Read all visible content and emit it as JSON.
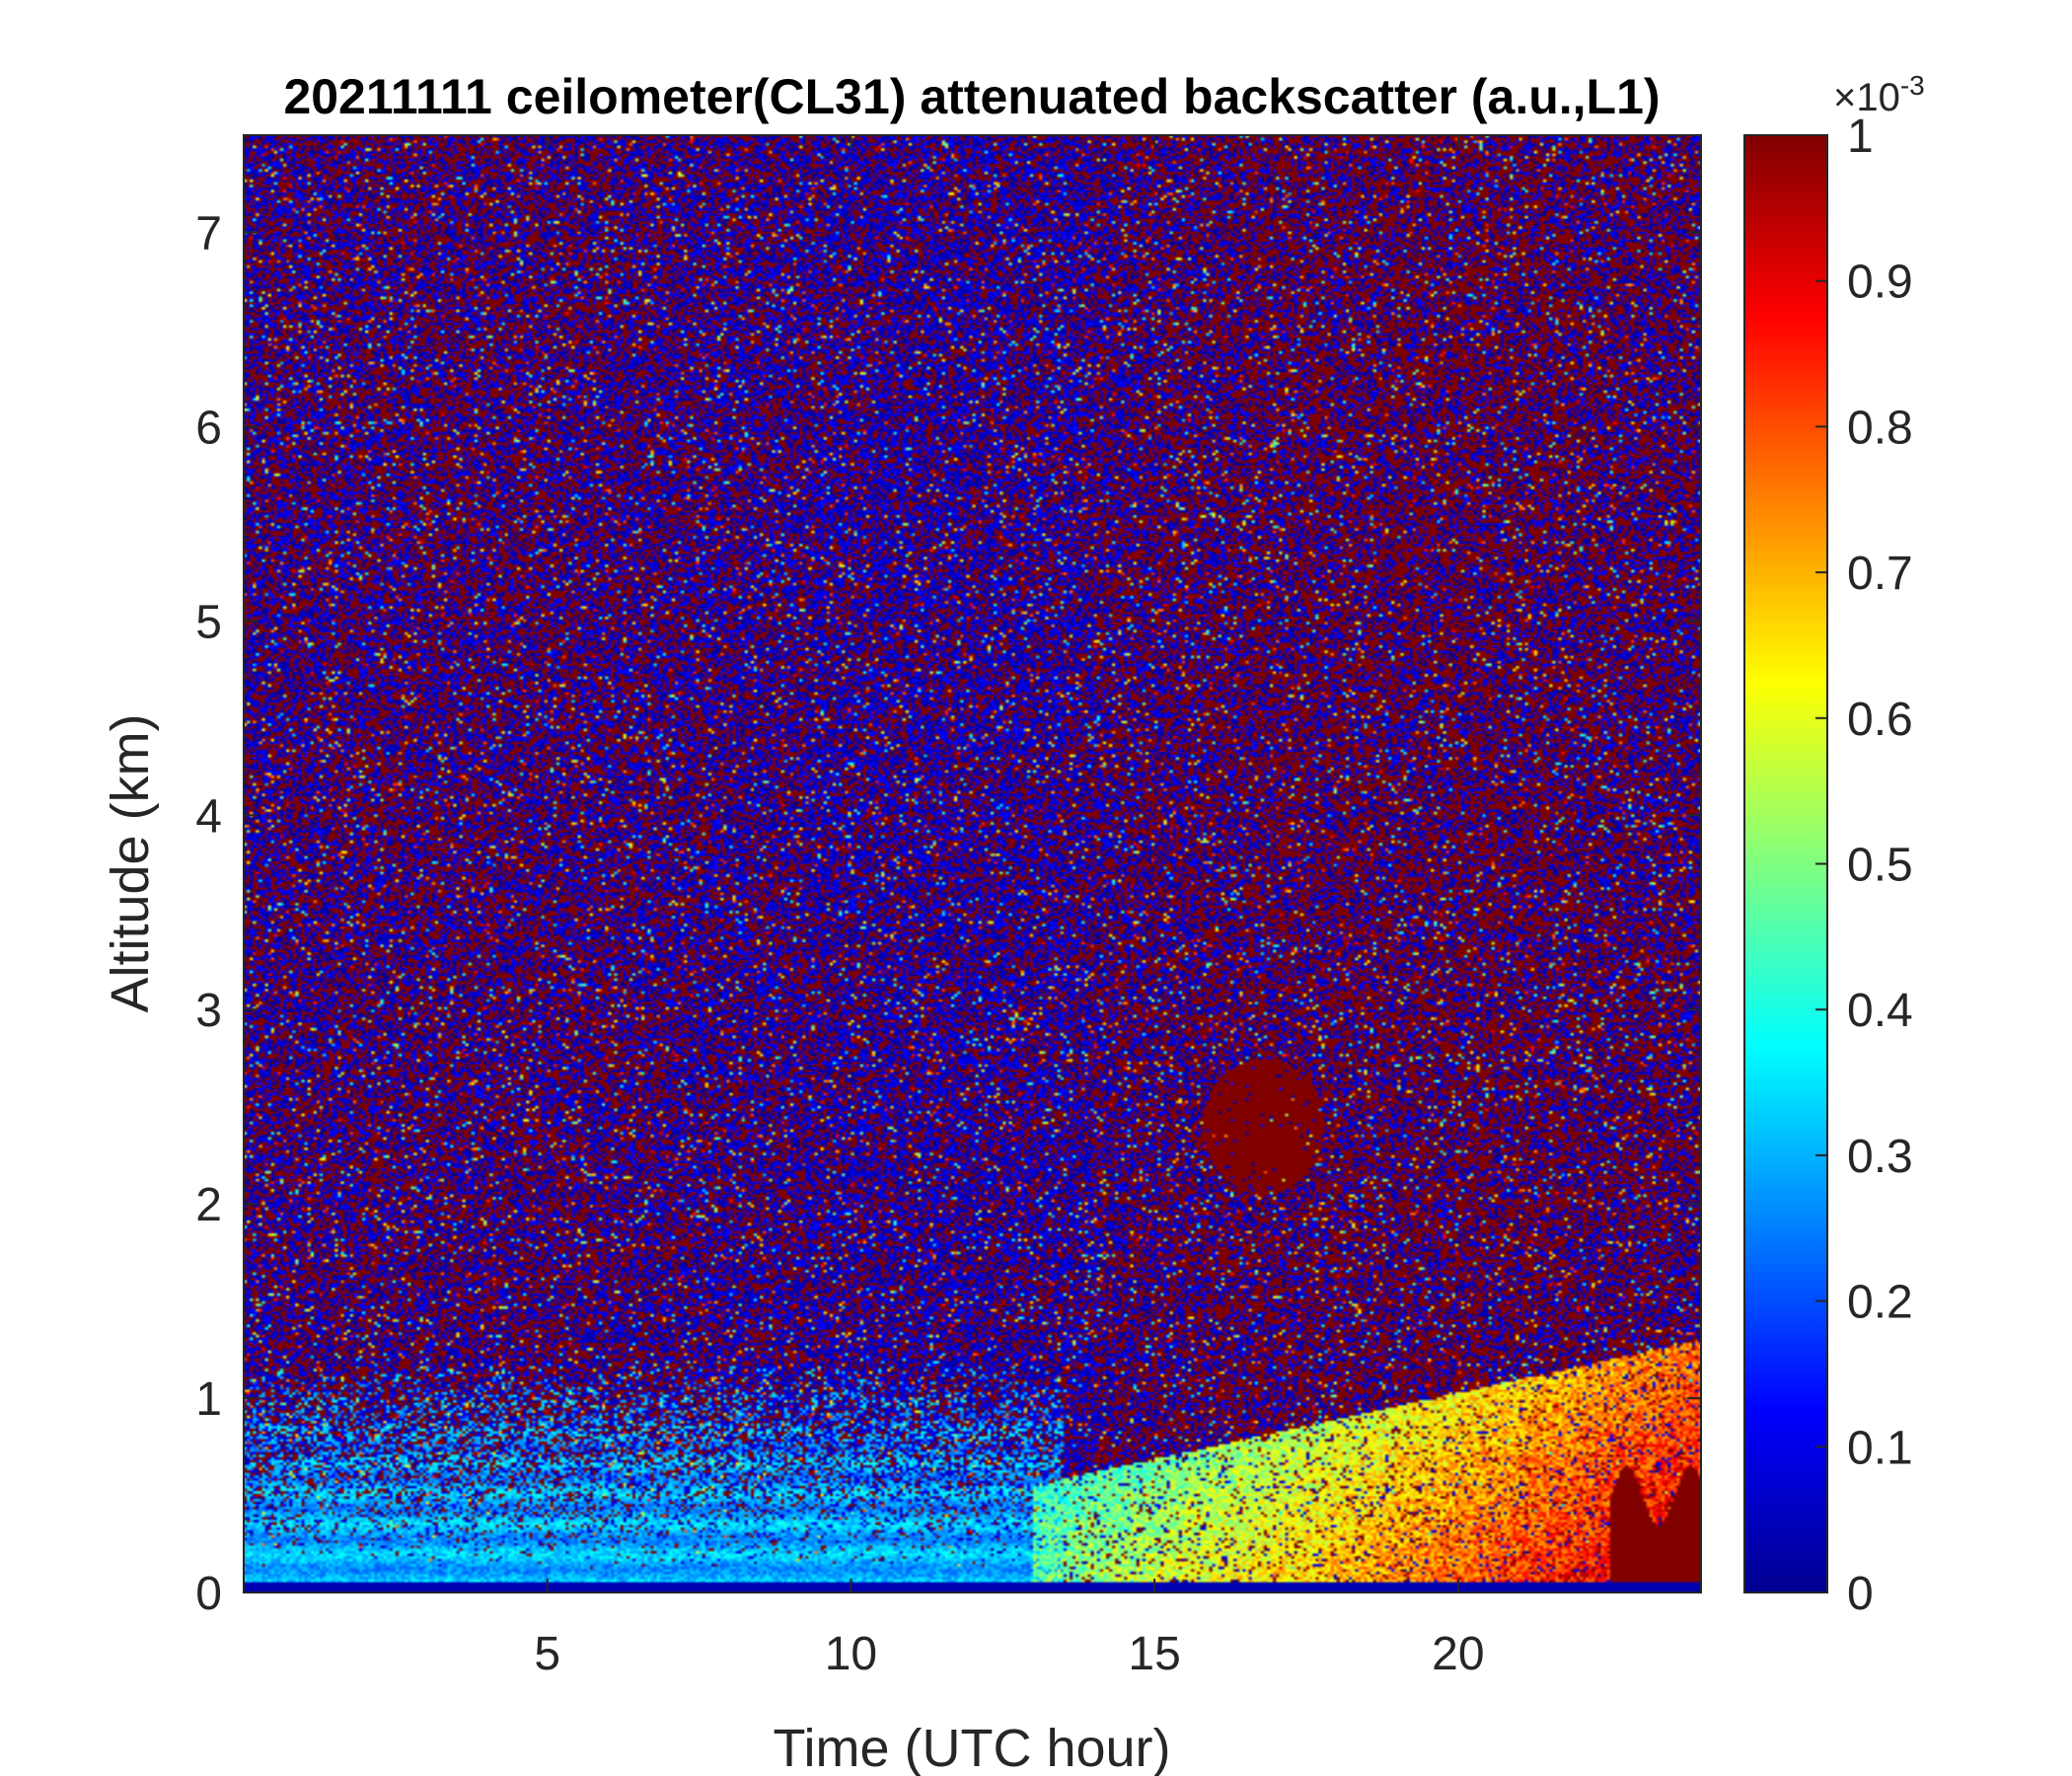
{
  "chart_data": {
    "type": "heatmap",
    "title": "20211111 ceilometer(CL31) attenuated backscatter (a.u.,L1)",
    "xlabel": "Time (UTC hour)",
    "ylabel": "Altitude (km)",
    "xlim": [
      0,
      24
    ],
    "ylim": [
      0,
      7.5
    ],
    "x_ticks": [
      5,
      10,
      15,
      20
    ],
    "y_ticks": [
      0,
      1,
      2,
      3,
      4,
      5,
      6,
      7
    ],
    "colorbar": {
      "colormap": "jet",
      "clim": [
        0,
        1
      ],
      "ticks": [
        0,
        0.1,
        0.2,
        0.3,
        0.4,
        0.5,
        0.6,
        0.7,
        0.8,
        0.9,
        1
      ],
      "exponent_base": "10",
      "exponent_power": "-3",
      "multiplier_sign": "×"
    },
    "features": [
      {
        "feature": "near-surface aerosol layer",
        "time_start": 0,
        "time_end": 13,
        "altitude_top_km": 0.7,
        "approx_value": 0.3
      },
      {
        "feature": "boundary-layer growth with high backscatter",
        "time_start": 13,
        "time_end": 24,
        "altitude_top_km": 1.3,
        "approx_value": 0.7
      },
      {
        "feature": "saturated layer near surface",
        "time_start": 22.5,
        "time_end": 24,
        "altitude_top_km": 0.5,
        "approx_value": 1.0
      },
      {
        "feature": "elevated backscatter patch",
        "time_start": 15.8,
        "time_end": 17.8,
        "altitude_top_km": 2.6,
        "approx_value": 1.0
      }
    ],
    "grid": false,
    "legend": "none"
  }
}
